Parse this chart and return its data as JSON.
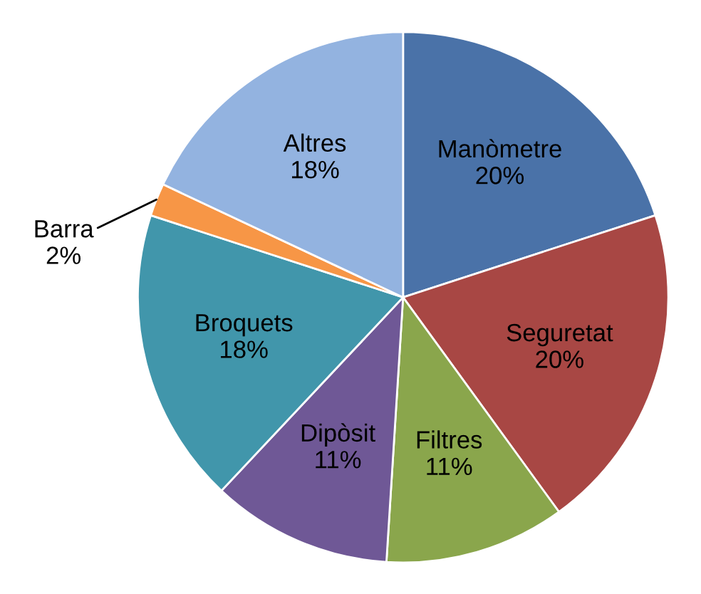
{
  "chart_data": {
    "type": "pie",
    "categories": [
      "Manòmetre",
      "Seguretat",
      "Filtres",
      "Dipòsit",
      "Broquets",
      "Barra",
      "Altres"
    ],
    "values": [
      20,
      20,
      11,
      11,
      18,
      2,
      18
    ],
    "value_labels": [
      "20%",
      "20%",
      "11%",
      "11%",
      "18%",
      "2%",
      "18%"
    ],
    "colors": [
      "#4a72a8",
      "#a84744",
      "#8aa64c",
      "#6f5896",
      "#4196ab",
      "#f79646",
      "#93b3e0"
    ],
    "legend": false
  }
}
